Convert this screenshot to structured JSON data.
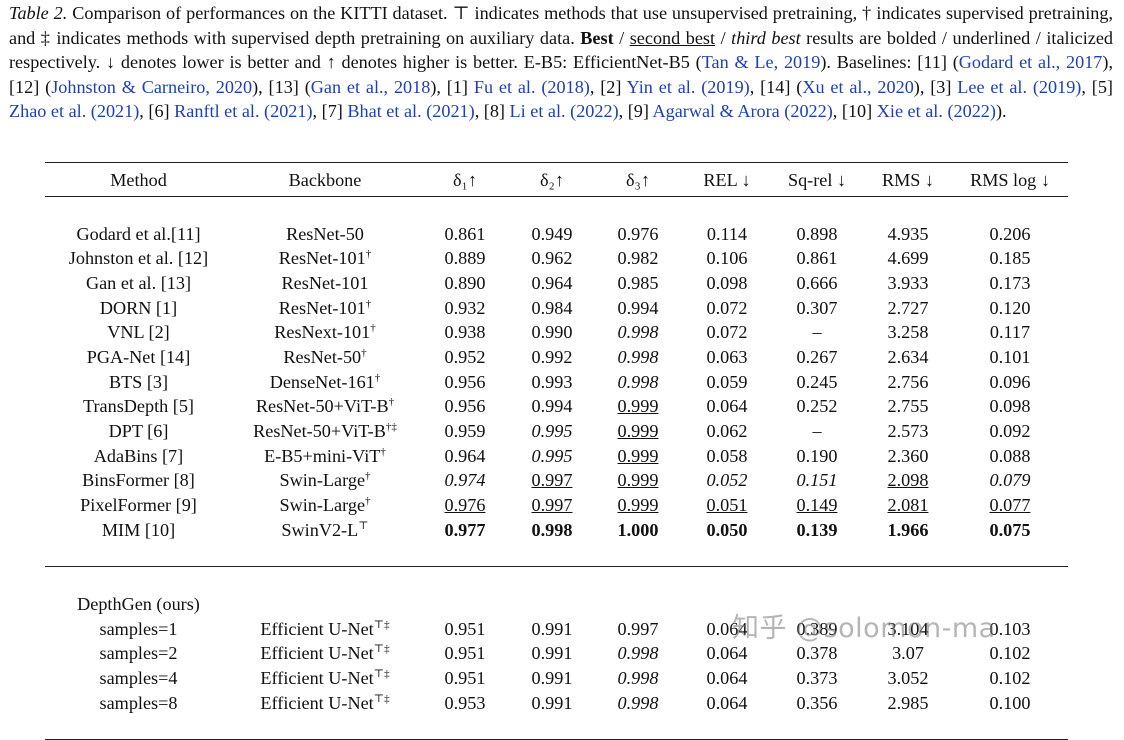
{
  "caption": [
    {
      "text": "Table 2.",
      "style": "italic"
    },
    {
      "text": " Comparison of performances on the KITTI dataset. ⊤ indicates methods that use unsupervised pretraining, † indicates supervised pretraining, and ‡ indicates methods with supervised depth pretraining on auxiliary data. ",
      "style": "plain"
    },
    {
      "text": "Best",
      "style": "bold"
    },
    {
      "text": " / ",
      "style": "plain"
    },
    {
      "text": "second best",
      "style": "underline"
    },
    {
      "text": " / ",
      "style": "plain"
    },
    {
      "text": "third best",
      "style": "italic"
    },
    {
      "text": " results are bolded / underlined / italicized respectively. ↓ denotes lower is better and ↑ denotes higher is better. E-B5: EfficientNet-B5 (",
      "style": "plain"
    },
    {
      "text": "Tan & Le, 2019",
      "style": "link"
    },
    {
      "text": "). Baselines: [11] (",
      "style": "plain"
    },
    {
      "text": "Godard et al., 2017",
      "style": "link"
    },
    {
      "text": "), [12] (",
      "style": "plain"
    },
    {
      "text": "Johnston & Carneiro, 2020",
      "style": "link"
    },
    {
      "text": "), [13] (",
      "style": "plain"
    },
    {
      "text": "Gan et al., 2018",
      "style": "link"
    },
    {
      "text": "), [1] ",
      "style": "plain"
    },
    {
      "text": "Fu et al. (2018)",
      "style": "link"
    },
    {
      "text": ", [2] ",
      "style": "plain"
    },
    {
      "text": "Yin et al. (2019)",
      "style": "link"
    },
    {
      "text": ", [14] (",
      "style": "plain"
    },
    {
      "text": "Xu et al., 2020",
      "style": "link"
    },
    {
      "text": "), [3] ",
      "style": "plain"
    },
    {
      "text": "Lee et al. (2019)",
      "style": "link"
    },
    {
      "text": ", [5] ",
      "style": "plain"
    },
    {
      "text": "Zhao et al. (2021)",
      "style": "link"
    },
    {
      "text": ", [6] ",
      "style": "plain"
    },
    {
      "text": "Ranftl et al. (2021)",
      "style": "link"
    },
    {
      "text": ", [7] ",
      "style": "plain"
    },
    {
      "text": "Bhat et al. (2021)",
      "style": "link"
    },
    {
      "text": ", [8] ",
      "style": "plain"
    },
    {
      "text": "Li et al. (2022)",
      "style": "link"
    },
    {
      "text": ", [9] ",
      "style": "plain"
    },
    {
      "text": "Agarwal & Arora (2022)",
      "style": "link"
    },
    {
      "text": ", [10] ",
      "style": "plain"
    },
    {
      "text": "Xie et al. (2022)",
      "style": "link"
    },
    {
      "text": ").",
      "style": "plain"
    }
  ],
  "table": {
    "header": [
      "Method",
      "Backbone",
      "δ₁↑",
      "δ₂↑",
      "δ₃↑",
      "REL ↓",
      "Sq-rel ↓",
      "RMS ↓",
      "RMS log ↓"
    ],
    "baselines": [
      [
        "Godard et al.[11]",
        "ResNet-50",
        "0.861",
        "0.949",
        "0.976",
        "0.114",
        "0.898",
        "4.935",
        "0.206"
      ],
      [
        "Johnston et al. [12]",
        {
          "text": "ResNet-101",
          "sup": "†"
        },
        "0.889",
        "0.962",
        "0.982",
        "0.106",
        "0.861",
        "4.699",
        "0.185"
      ],
      [
        "Gan et al. [13]",
        "ResNet-101",
        "0.890",
        "0.964",
        "0.985",
        "0.098",
        "0.666",
        "3.933",
        "0.173"
      ],
      [
        "DORN [1]",
        {
          "text": "ResNet-101",
          "sup": "†"
        },
        "0.932",
        "0.984",
        "0.994",
        "0.072",
        "0.307",
        "2.727",
        "0.120"
      ],
      [
        "VNL [2]",
        {
          "text": "ResNext-101",
          "sup": "†"
        },
        "0.938",
        "0.990",
        {
          "text": "0.998",
          "style": "italic"
        },
        "0.072",
        "–",
        "3.258",
        "0.117"
      ],
      [
        "PGA-Net [14]",
        {
          "text": "ResNet-50",
          "sup": "†"
        },
        "0.952",
        "0.992",
        {
          "text": "0.998",
          "style": "italic"
        },
        "0.063",
        "0.267",
        "2.634",
        "0.101"
      ],
      [
        "BTS [3]",
        {
          "text": "DenseNet-161",
          "sup": "†"
        },
        "0.956",
        "0.993",
        {
          "text": "0.998",
          "style": "italic"
        },
        "0.059",
        "0.245",
        "2.756",
        "0.096"
      ],
      [
        "TransDepth [5]",
        {
          "text": "ResNet-50+ViT-B",
          "sup": "†"
        },
        "0.956",
        "0.994",
        {
          "text": "0.999",
          "style": "underline"
        },
        "0.064",
        "0.252",
        "2.755",
        "0.098"
      ],
      [
        "DPT [6]",
        {
          "text": "ResNet-50+ViT-B",
          "sup": "†‡"
        },
        "0.959",
        {
          "text": "0.995",
          "style": "italic"
        },
        {
          "text": "0.999",
          "style": "underline"
        },
        "0.062",
        "–",
        "2.573",
        "0.092"
      ],
      [
        "AdaBins [7]",
        {
          "text": "E-B5+mini-ViT",
          "sup": "†"
        },
        "0.964",
        {
          "text": "0.995",
          "style": "italic"
        },
        {
          "text": "0.999",
          "style": "underline"
        },
        "0.058",
        "0.190",
        "2.360",
        "0.088"
      ],
      [
        "BinsFormer [8]",
        {
          "text": "Swin-Large",
          "sup": "†"
        },
        {
          "text": "0.974",
          "style": "italic"
        },
        {
          "text": "0.997",
          "style": "underline"
        },
        {
          "text": "0.999",
          "style": "underline"
        },
        {
          "text": "0.052",
          "style": "italic"
        },
        {
          "text": "0.151",
          "style": "italic"
        },
        {
          "text": "2.098",
          "style": "underline"
        },
        {
          "text": "0.079",
          "style": "italic"
        }
      ],
      [
        "PixelFormer [9]",
        {
          "text": "Swin-Large",
          "sup": "†"
        },
        {
          "text": "0.976",
          "style": "underline"
        },
        {
          "text": "0.997",
          "style": "underline"
        },
        {
          "text": "0.999",
          "style": "underline"
        },
        {
          "text": "0.051",
          "style": "underline"
        },
        {
          "text": "0.149",
          "style": "underline"
        },
        {
          "text": "2.081",
          "style": "underline"
        },
        {
          "text": "0.077",
          "style": "underline"
        }
      ],
      [
        "MIM [10]",
        {
          "text": "SwinV2-L",
          "sup": "⊤"
        },
        {
          "text": "0.977",
          "style": "bold"
        },
        {
          "text": "0.998",
          "style": "bold"
        },
        {
          "text": "1.000",
          "style": "bold"
        },
        {
          "text": "0.050",
          "style": "bold"
        },
        {
          "text": "0.139",
          "style": "bold"
        },
        {
          "text": "1.966",
          "style": "bold"
        },
        {
          "text": "0.075",
          "style": "bold"
        }
      ]
    ],
    "ours_label": "DepthGen (ours)",
    "ours": [
      [
        "samples=1",
        {
          "text": "Efficient U-Net",
          "sup": "⊤‡"
        },
        "0.951",
        "0.991",
        "0.997",
        "0.064",
        "0.389",
        "3.104",
        "0.103"
      ],
      [
        "samples=2",
        {
          "text": "Efficient U-Net",
          "sup": "⊤‡"
        },
        "0.951",
        "0.991",
        {
          "text": "0.998",
          "style": "italic"
        },
        "0.064",
        "0.378",
        "3.07",
        "0.102"
      ],
      [
        "samples=4",
        {
          "text": "Efficient U-Net",
          "sup": "⊤‡"
        },
        "0.951",
        "0.991",
        {
          "text": "0.998",
          "style": "italic"
        },
        "0.064",
        "0.373",
        "3.052",
        "0.102"
      ],
      [
        "samples=8",
        {
          "text": "Efficient U-Net",
          "sup": "⊤‡"
        },
        "0.953",
        "0.991",
        {
          "text": "0.998",
          "style": "italic"
        },
        "0.064",
        "0.356",
        "2.985",
        "0.100"
      ]
    ]
  },
  "watermark": "知乎 @solomon-ma"
}
